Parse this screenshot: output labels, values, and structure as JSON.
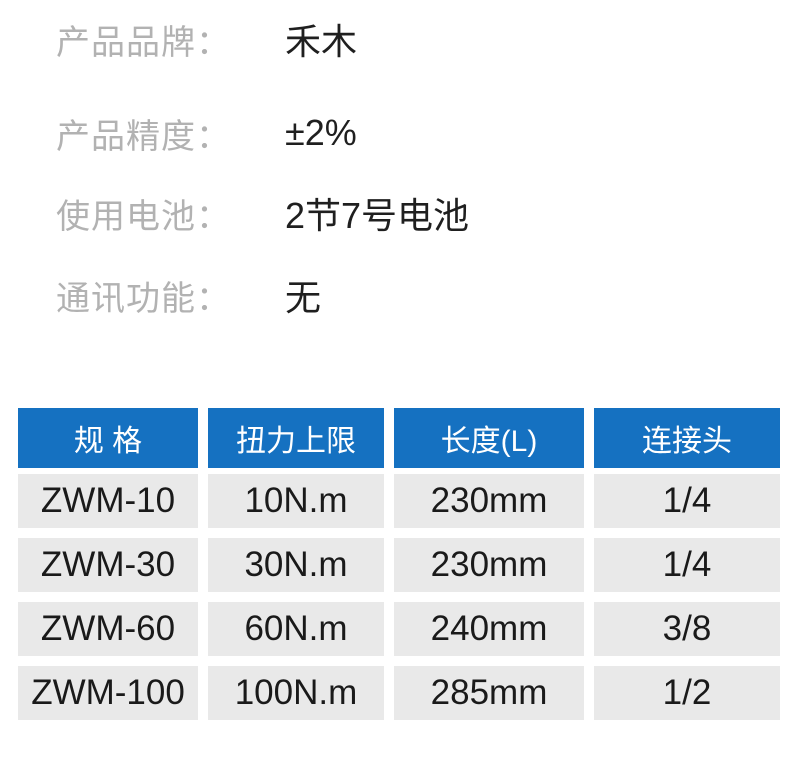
{
  "specs": {
    "items": [
      {
        "label": "产品品牌：",
        "value": "禾木"
      },
      {
        "label": "产品精度：",
        "value": "±2%"
      },
      {
        "label": "使用电池：",
        "value": "2节7号电池"
      },
      {
        "label": "通讯功能：",
        "value": "无"
      }
    ]
  },
  "table": {
    "header_bg": "#1571c1",
    "header_text_color": "#ffffff",
    "row_bg": "#e9e9e9",
    "columns": [
      "规 格",
      "扭力上限",
      "长度(L)",
      "连接头"
    ],
    "rows": [
      [
        "ZWM-10",
        "10N.m",
        "230mm",
        "1/4"
      ],
      [
        "ZWM-30",
        "30N.m",
        "230mm",
        "1/4"
      ],
      [
        "ZWM-60",
        "60N.m",
        "240mm",
        "3/8"
      ],
      [
        "ZWM-100",
        "100N.m",
        "285mm",
        "1/2"
      ]
    ]
  },
  "chart_data": {
    "type": "table",
    "title": "",
    "columns": [
      "规 格",
      "扭力上限",
      "长度(L)",
      "连接头"
    ],
    "rows": [
      [
        "ZWM-10",
        "10N.m",
        "230mm",
        "1/4"
      ],
      [
        "ZWM-30",
        "30N.m",
        "230mm",
        "1/4"
      ],
      [
        "ZWM-60",
        "60N.m",
        "240mm",
        "3/8"
      ],
      [
        "ZWM-100",
        "100N.m",
        "285mm",
        "1/2"
      ]
    ]
  }
}
